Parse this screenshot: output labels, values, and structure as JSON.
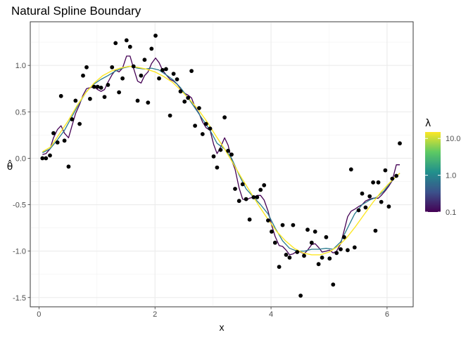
{
  "chart_data": {
    "type": "scatter",
    "title": "Natural Spline Boundary",
    "xlabel": "x",
    "ylabel": "θ̂",
    "xlim": [
      -0.15,
      6.45
    ],
    "ylim": [
      -1.6,
      1.47
    ],
    "xticks": [
      0,
      2,
      4,
      6
    ],
    "yticks": [
      -1.5,
      -1.0,
      -0.5,
      0.0,
      0.5,
      1.0
    ],
    "ytick_labels": [
      "-1.5",
      "-1.0",
      "-0.5",
      "0.0",
      "0.5",
      "1.0"
    ],
    "grid": true,
    "legend": {
      "title": "λ",
      "placement": "right",
      "scale": "log",
      "range": [
        0.1,
        15
      ],
      "ticks": [
        {
          "value": 10,
          "label": "10.0"
        },
        {
          "value": 1,
          "label": "1.0"
        },
        {
          "value": 0.1,
          "label": "0.1"
        }
      ],
      "colors": [
        "#440154",
        "#3b528b",
        "#21908c",
        "#5dc963",
        "#fde725"
      ]
    },
    "points": [
      {
        "x": 0.06,
        "y": 0.0
      },
      {
        "x": 0.12,
        "y": 0.0
      },
      {
        "x": 0.19,
        "y": 0.03
      },
      {
        "x": 0.25,
        "y": 0.27
      },
      {
        "x": 0.32,
        "y": 0.17
      },
      {
        "x": 0.38,
        "y": 0.67
      },
      {
        "x": 0.44,
        "y": 0.19
      },
      {
        "x": 0.51,
        "y": -0.09
      },
      {
        "x": 0.57,
        "y": 0.42
      },
      {
        "x": 0.63,
        "y": 0.62
      },
      {
        "x": 0.7,
        "y": 0.37
      },
      {
        "x": 0.76,
        "y": 0.89
      },
      {
        "x": 0.82,
        "y": 0.98
      },
      {
        "x": 0.88,
        "y": 0.64
      },
      {
        "x": 0.95,
        "y": 0.77
      },
      {
        "x": 1.01,
        "y": 0.77
      },
      {
        "x": 1.07,
        "y": 0.76
      },
      {
        "x": 1.13,
        "y": 0.66
      },
      {
        "x": 1.19,
        "y": 0.79
      },
      {
        "x": 1.26,
        "y": 0.98
      },
      {
        "x": 1.32,
        "y": 1.24
      },
      {
        "x": 1.38,
        "y": 0.71
      },
      {
        "x": 1.44,
        "y": 0.86
      },
      {
        "x": 1.51,
        "y": 1.27
      },
      {
        "x": 1.57,
        "y": 1.2
      },
      {
        "x": 1.63,
        "y": 0.99
      },
      {
        "x": 1.7,
        "y": 0.62
      },
      {
        "x": 1.76,
        "y": 0.89
      },
      {
        "x": 1.82,
        "y": 1.06
      },
      {
        "x": 1.88,
        "y": 0.6
      },
      {
        "x": 1.94,
        "y": 1.18
      },
      {
        "x": 2.01,
        "y": 1.32
      },
      {
        "x": 2.07,
        "y": 0.86
      },
      {
        "x": 2.13,
        "y": 0.95
      },
      {
        "x": 2.19,
        "y": 0.96
      },
      {
        "x": 2.26,
        "y": 0.46
      },
      {
        "x": 2.32,
        "y": 0.91
      },
      {
        "x": 2.38,
        "y": 0.85
      },
      {
        "x": 2.44,
        "y": 0.72
      },
      {
        "x": 2.51,
        "y": 0.61
      },
      {
        "x": 2.57,
        "y": 0.65
      },
      {
        "x": 2.63,
        "y": 0.94
      },
      {
        "x": 2.69,
        "y": 0.35
      },
      {
        "x": 2.76,
        "y": 0.54
      },
      {
        "x": 2.82,
        "y": 0.26
      },
      {
        "x": 2.88,
        "y": 0.37
      },
      {
        "x": 2.95,
        "y": 0.32
      },
      {
        "x": 3.01,
        "y": 0.02
      },
      {
        "x": 3.07,
        "y": -0.1
      },
      {
        "x": 3.13,
        "y": 0.09
      },
      {
        "x": 3.2,
        "y": 0.44
      },
      {
        "x": 3.26,
        "y": 0.08
      },
      {
        "x": 3.32,
        "y": 0.04
      },
      {
        "x": 3.38,
        "y": -0.33
      },
      {
        "x": 3.45,
        "y": -0.46
      },
      {
        "x": 3.51,
        "y": -0.28
      },
      {
        "x": 3.57,
        "y": -0.44
      },
      {
        "x": 3.63,
        "y": -0.66
      },
      {
        "x": 3.7,
        "y": -0.42
      },
      {
        "x": 3.76,
        "y": -0.42
      },
      {
        "x": 3.82,
        "y": -0.34
      },
      {
        "x": 3.88,
        "y": -0.29
      },
      {
        "x": 3.95,
        "y": -0.67
      },
      {
        "x": 4.01,
        "y": -0.79
      },
      {
        "x": 4.07,
        "y": -0.91
      },
      {
        "x": 4.14,
        "y": -1.17
      },
      {
        "x": 4.2,
        "y": -0.72
      },
      {
        "x": 4.26,
        "y": -1.04
      },
      {
        "x": 4.32,
        "y": -1.07
      },
      {
        "x": 4.38,
        "y": -0.72
      },
      {
        "x": 4.45,
        "y": -1.01
      },
      {
        "x": 4.51,
        "y": -1.48
      },
      {
        "x": 4.57,
        "y": -1.05
      },
      {
        "x": 4.63,
        "y": -0.77
      },
      {
        "x": 4.7,
        "y": -0.91
      },
      {
        "x": 4.76,
        "y": -0.79
      },
      {
        "x": 4.82,
        "y": -1.14
      },
      {
        "x": 4.88,
        "y": -1.07
      },
      {
        "x": 4.95,
        "y": -0.85
      },
      {
        "x": 5.01,
        "y": -1.08
      },
      {
        "x": 5.07,
        "y": -1.36
      },
      {
        "x": 5.13,
        "y": -1.02
      },
      {
        "x": 5.2,
        "y": -0.98
      },
      {
        "x": 5.26,
        "y": -0.85
      },
      {
        "x": 5.32,
        "y": -0.99
      },
      {
        "x": 5.38,
        "y": -0.12
      },
      {
        "x": 5.44,
        "y": -0.96
      },
      {
        "x": 5.51,
        "y": -0.56
      },
      {
        "x": 5.57,
        "y": -0.38
      },
      {
        "x": 5.63,
        "y": -0.53
      },
      {
        "x": 5.7,
        "y": -0.41
      },
      {
        "x": 5.76,
        "y": -0.26
      },
      {
        "x": 5.8,
        "y": -0.78
      },
      {
        "x": 5.85,
        "y": -0.26
      },
      {
        "x": 5.9,
        "y": -0.47
      },
      {
        "x": 5.97,
        "y": -0.13
      },
      {
        "x": 6.03,
        "y": -0.52
      },
      {
        "x": 6.09,
        "y": -0.22
      },
      {
        "x": 6.16,
        "y": -0.19
      },
      {
        "x": 6.22,
        "y": 0.16
      }
    ],
    "series": [
      {
        "lambda": 0.1,
        "color": "#440154",
        "width": 1.3,
        "x": [
          0.06,
          0.12,
          0.19,
          0.25,
          0.32,
          0.38,
          0.44,
          0.51,
          0.57,
          0.63,
          0.7,
          0.76,
          0.82,
          0.88,
          0.95,
          1.01,
          1.07,
          1.13,
          1.19,
          1.26,
          1.32,
          1.38,
          1.44,
          1.51,
          1.57,
          1.63,
          1.7,
          1.76,
          1.82,
          1.88,
          1.94,
          2.01,
          2.07,
          2.13,
          2.19,
          2.26,
          2.32,
          2.38,
          2.44,
          2.51,
          2.57,
          2.63,
          2.69,
          2.76,
          2.82,
          2.88,
          2.95,
          3.01,
          3.07,
          3.13,
          3.2,
          3.26,
          3.32,
          3.38,
          3.45,
          3.51,
          3.57,
          3.63,
          3.7,
          3.76,
          3.82,
          3.88,
          3.95,
          4.01,
          4.07,
          4.14,
          4.2,
          4.26,
          4.32,
          4.38,
          4.45,
          4.51,
          4.57,
          4.63,
          4.7,
          4.76,
          4.82,
          4.88,
          4.95,
          5.01,
          5.07,
          5.13,
          5.2,
          5.26,
          5.32,
          5.38,
          5.44,
          5.51,
          5.57,
          5.63,
          5.7,
          5.76,
          5.85,
          5.9,
          5.97,
          6.03,
          6.09,
          6.16,
          6.22
        ],
        "y": [
          0.04,
          0.05,
          0.1,
          0.22,
          0.31,
          0.35,
          0.27,
          0.22,
          0.35,
          0.48,
          0.58,
          0.68,
          0.75,
          0.76,
          0.77,
          0.74,
          0.72,
          0.74,
          0.82,
          0.9,
          0.95,
          0.93,
          0.97,
          1.1,
          1.1,
          0.97,
          0.83,
          0.81,
          0.89,
          0.93,
          1.02,
          1.08,
          1.03,
          0.95,
          0.9,
          0.85,
          0.83,
          0.8,
          0.75,
          0.7,
          0.68,
          0.65,
          0.55,
          0.48,
          0.39,
          0.33,
          0.3,
          0.15,
          0.05,
          0.12,
          0.22,
          0.14,
          -0.02,
          -0.12,
          -0.32,
          -0.44,
          -0.45,
          -0.43,
          -0.42,
          -0.4,
          -0.4,
          -0.45,
          -0.57,
          -0.72,
          -0.84,
          -0.94,
          -0.95,
          -0.99,
          -1.04,
          -1.03,
          -1.0,
          -1.01,
          -1.03,
          -0.99,
          -0.93,
          -0.92,
          -0.96,
          -1.01,
          -1.0,
          -0.99,
          -1.02,
          -1.0,
          -0.92,
          -0.78,
          -0.63,
          -0.57,
          -0.55,
          -0.52,
          -0.5,
          -0.46,
          -0.44,
          -0.43,
          -0.43,
          -0.4,
          -0.35,
          -0.3,
          -0.24,
          -0.07,
          -0.07
        ]
      },
      {
        "lambda": 1,
        "color": "#2a7b8e",
        "width": 1.3,
        "x": [
          0.06,
          0.19,
          0.32,
          0.44,
          0.57,
          0.7,
          0.82,
          0.95,
          1.07,
          1.19,
          1.32,
          1.44,
          1.57,
          1.7,
          1.82,
          1.94,
          2.07,
          2.19,
          2.32,
          2.44,
          2.57,
          2.69,
          2.82,
          2.95,
          3.07,
          3.2,
          3.32,
          3.45,
          3.57,
          3.7,
          3.82,
          3.95,
          4.07,
          4.2,
          4.32,
          4.45,
          4.57,
          4.7,
          4.82,
          4.95,
          5.07,
          5.2,
          5.32,
          5.44,
          5.57,
          5.7,
          5.82,
          5.95,
          6.07,
          6.22
        ],
        "y": [
          0.06,
          0.1,
          0.2,
          0.3,
          0.45,
          0.6,
          0.72,
          0.8,
          0.85,
          0.89,
          0.94,
          0.97,
          0.99,
          0.97,
          0.96,
          0.97,
          0.95,
          0.9,
          0.84,
          0.76,
          0.65,
          0.54,
          0.42,
          0.3,
          0.16,
          0.1,
          0.0,
          -0.18,
          -0.33,
          -0.42,
          -0.5,
          -0.6,
          -0.75,
          -0.89,
          -0.97,
          -1.0,
          -1.0,
          -0.98,
          -0.98,
          -0.97,
          -0.98,
          -0.9,
          -0.75,
          -0.6,
          -0.5,
          -0.45,
          -0.42,
          -0.35,
          -0.25,
          -0.16
        ]
      },
      {
        "lambda": 15,
        "color": "#fde725",
        "width": 1.4,
        "x": [
          0.06,
          0.2,
          0.35,
          0.5,
          0.65,
          0.8,
          0.95,
          1.1,
          1.25,
          1.4,
          1.55,
          1.7,
          1.85,
          2.0,
          2.15,
          2.3,
          2.45,
          2.6,
          2.75,
          2.9,
          3.05,
          3.2,
          3.35,
          3.5,
          3.65,
          3.8,
          3.95,
          4.1,
          4.25,
          4.4,
          4.55,
          4.7,
          4.85,
          5.0,
          5.15,
          5.3,
          5.45,
          5.6,
          5.75,
          5.9,
          6.05,
          6.22
        ],
        "y": [
          0.07,
          0.12,
          0.26,
          0.4,
          0.56,
          0.7,
          0.81,
          0.89,
          0.94,
          0.97,
          0.99,
          0.98,
          0.96,
          0.93,
          0.88,
          0.82,
          0.73,
          0.63,
          0.52,
          0.39,
          0.24,
          0.1,
          -0.06,
          -0.22,
          -0.37,
          -0.52,
          -0.66,
          -0.79,
          -0.89,
          -0.97,
          -1.02,
          -1.04,
          -1.04,
          -1.01,
          -0.95,
          -0.86,
          -0.74,
          -0.61,
          -0.48,
          -0.36,
          -0.26,
          -0.16
        ]
      }
    ]
  }
}
